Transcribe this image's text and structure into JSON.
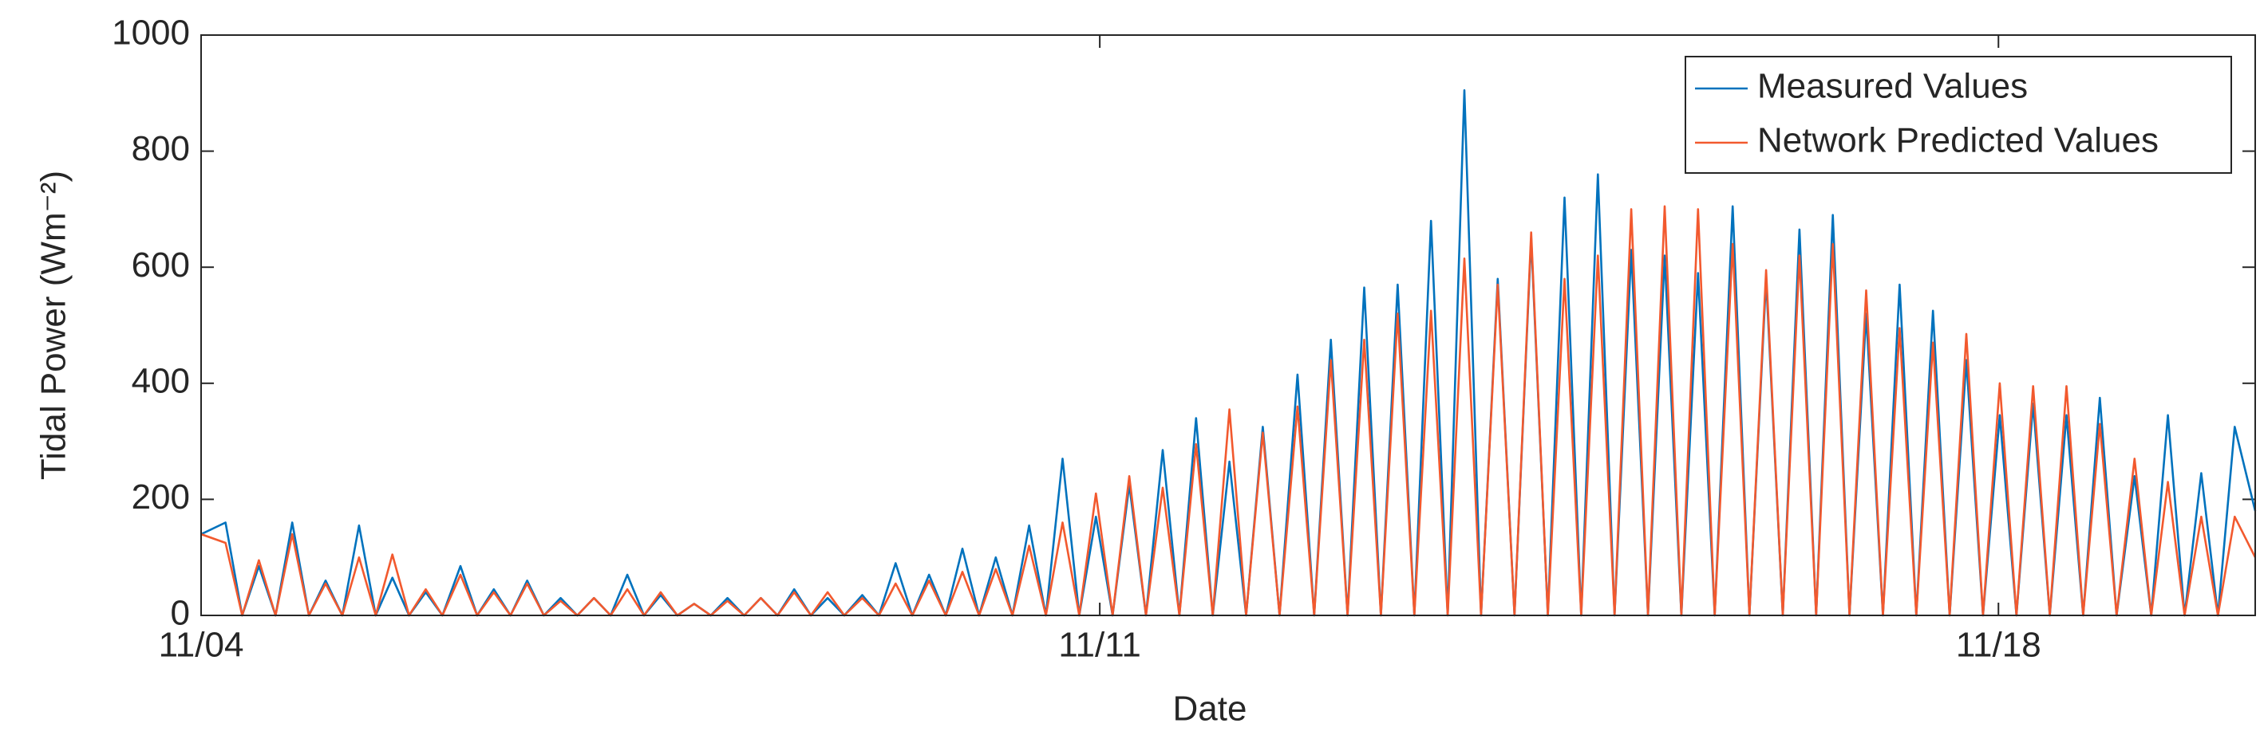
{
  "chart_data": {
    "type": "line",
    "xlabel": "Date",
    "ylabel": "Tidal Power (Wm⁻²)",
    "xlim": [
      0,
      16
    ],
    "xticks": [
      {
        "value": 0,
        "label": "11/04"
      },
      {
        "value": 7,
        "label": "11/11"
      },
      {
        "value": 14,
        "label": "11/18"
      }
    ],
    "ylim": [
      0,
      1000
    ],
    "yticks": [
      0,
      200,
      400,
      600,
      800,
      1000
    ],
    "legend": "upper right",
    "x": [
      0,
      0.19,
      0.32,
      0.45,
      0.58,
      0.71,
      0.84,
      0.97,
      1.1,
      1.23,
      1.36,
      1.49,
      1.62,
      1.75,
      1.88,
      2.02,
      2.15,
      2.28,
      2.41,
      2.54,
      2.67,
      2.8,
      2.93,
      3.06,
      3.19,
      3.32,
      3.45,
      3.58,
      3.71,
      3.84,
      3.97,
      4.1,
      4.23,
      4.36,
      4.49,
      4.62,
      4.75,
      4.88,
      5.01,
      5.15,
      5.28,
      5.41,
      5.54,
      5.67,
      5.8,
      5.93,
      6.06,
      6.19,
      6.32,
      6.45,
      6.58,
      6.71,
      6.84,
      6.97,
      7.1,
      7.23,
      7.36,
      7.49,
      7.62,
      7.75,
      7.88,
      8.01,
      8.14,
      8.27,
      8.4,
      8.54,
      8.67,
      8.8,
      8.93,
      9.06,
      9.19,
      9.32,
      9.45,
      9.58,
      9.71,
      9.84,
      9.97,
      10.1,
      10.23,
      10.36,
      10.49,
      10.62,
      10.75,
      10.88,
      11.01,
      11.14,
      11.27,
      11.4,
      11.53,
      11.66,
      11.79,
      11.93,
      12.06,
      12.19,
      12.32,
      12.45,
      12.58,
      12.71,
      12.84,
      12.97,
      13.1,
      13.23,
      13.36,
      13.49,
      13.62,
      13.75,
      13.88,
      14.01,
      14.14,
      14.27,
      14.4,
      14.53,
      14.66,
      14.79,
      14.92,
      15.06,
      15.19,
      15.32,
      15.45,
      15.58,
      15.71,
      15.84,
      16
    ],
    "series": [
      {
        "name": "Measured Values",
        "color": "#0072bd",
        "values": [
          140,
          160,
          0,
          85,
          0,
          160,
          0,
          60,
          0,
          155,
          0,
          65,
          0,
          40,
          0,
          85,
          0,
          45,
          0,
          60,
          0,
          30,
          0,
          30,
          0,
          70,
          0,
          35,
          0,
          20,
          0,
          30,
          0,
          30,
          0,
          45,
          0,
          30,
          0,
          35,
          0,
          90,
          0,
          70,
          0,
          115,
          0,
          100,
          0,
          155,
          0,
          270,
          0,
          170,
          0,
          225,
          0,
          285,
          0,
          340,
          0,
          265,
          0,
          325,
          0,
          415,
          0,
          475,
          0,
          565,
          0,
          570,
          0,
          680,
          0,
          905,
          0,
          580,
          0,
          650,
          0,
          720,
          0,
          760,
          0,
          630,
          0,
          620,
          0,
          590,
          0,
          705,
          0,
          580,
          0,
          665,
          0,
          690,
          0,
          520,
          0,
          570,
          0,
          525,
          0,
          440,
          0,
          345,
          0,
          365,
          0,
          345,
          0,
          375,
          0,
          240,
          0,
          345,
          0,
          245,
          0,
          325,
          180
        ]
      },
      {
        "name": "Network Predicted Values",
        "color": "#f2592e",
        "values": [
          140,
          125,
          0,
          95,
          0,
          140,
          0,
          55,
          0,
          100,
          0,
          105,
          0,
          45,
          0,
          70,
          0,
          40,
          0,
          55,
          0,
          25,
          0,
          30,
          0,
          45,
          0,
          40,
          0,
          20,
          0,
          25,
          0,
          30,
          0,
          40,
          0,
          40,
          0,
          30,
          0,
          55,
          0,
          60,
          0,
          75,
          0,
          80,
          0,
          120,
          0,
          160,
          0,
          210,
          0,
          240,
          0,
          220,
          0,
          295,
          0,
          355,
          0,
          315,
          0,
          360,
          0,
          440,
          0,
          475,
          0,
          520,
          0,
          525,
          0,
          615,
          0,
          570,
          0,
          660,
          0,
          580,
          0,
          620,
          0,
          700,
          0,
          705,
          0,
          700,
          0,
          640,
          0,
          595,
          0,
          620,
          0,
          640,
          0,
          560,
          0,
          495,
          0,
          470,
          0,
          485,
          0,
          400,
          0,
          395,
          0,
          395,
          0,
          330,
          0,
          270,
          0,
          230,
          0,
          170,
          0,
          170,
          100
        ]
      }
    ]
  }
}
